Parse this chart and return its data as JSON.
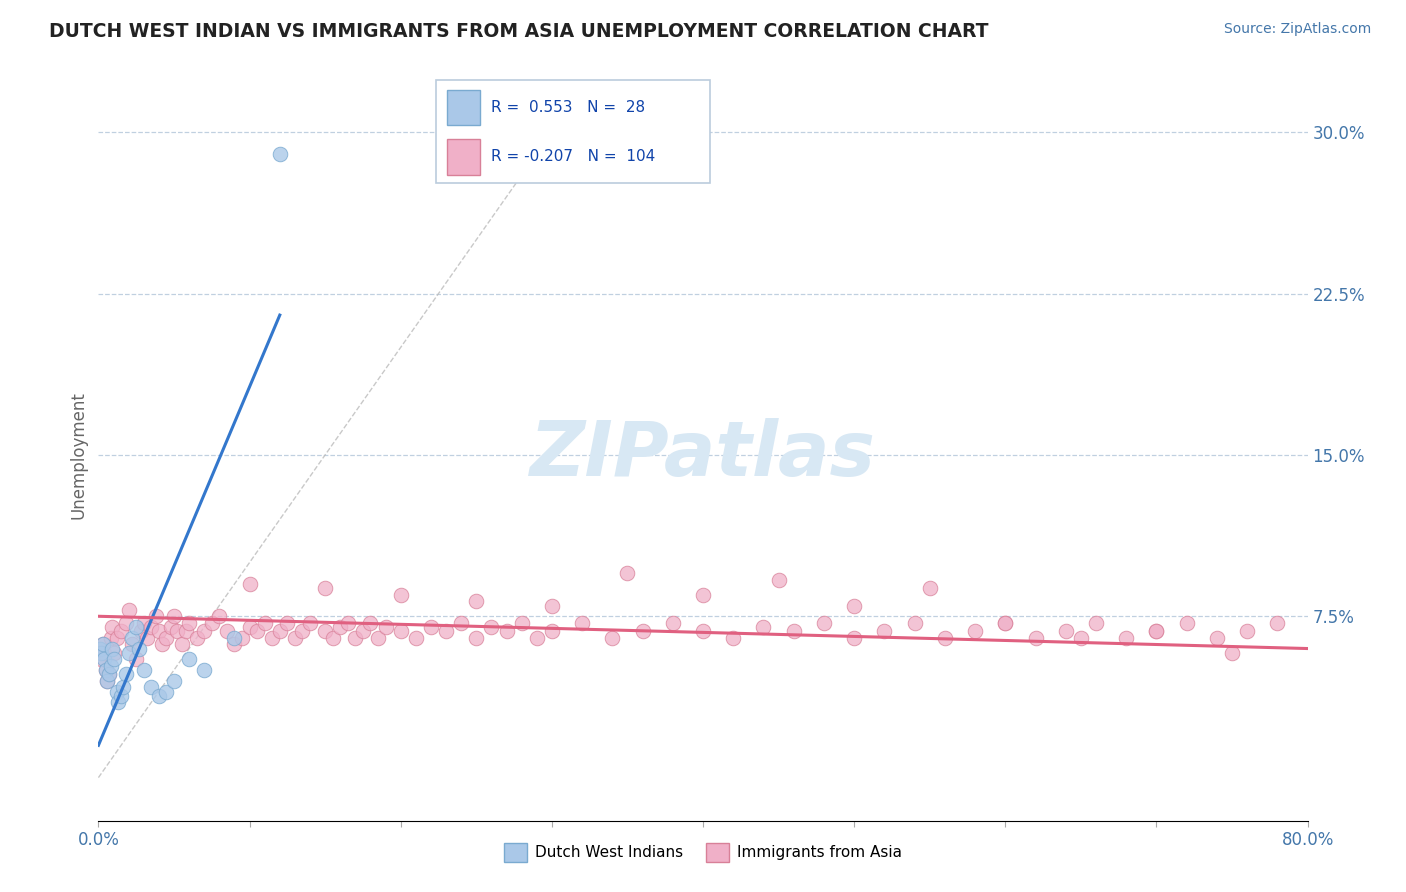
{
  "title": "DUTCH WEST INDIAN VS IMMIGRANTS FROM ASIA UNEMPLOYMENT CORRELATION CHART",
  "source_text": "Source: ZipAtlas.com",
  "ylabel": "Unemployment",
  "xlim": [
    0.0,
    0.8
  ],
  "ylim": [
    -0.02,
    0.32
  ],
  "xticks": [
    0.0,
    0.1,
    0.2,
    0.3,
    0.4,
    0.5,
    0.6,
    0.7,
    0.8
  ],
  "xticklabels": [
    "0.0%",
    "",
    "",
    "",
    "",
    "",
    "",
    "",
    "80.0%"
  ],
  "yticks_right": [
    0.075,
    0.15,
    0.225,
    0.3
  ],
  "yticklabels_right": [
    "7.5%",
    "15.0%",
    "22.5%",
    "30.0%"
  ],
  "blue_R": 0.553,
  "blue_N": 28,
  "pink_R": -0.207,
  "pink_N": 104,
  "blue_color": "#aac8e8",
  "blue_edge": "#7aaad0",
  "blue_line_color": "#3377cc",
  "pink_color": "#f0b0c8",
  "pink_edge": "#d88098",
  "pink_line_color": "#e06080",
  "watermark": "ZIPatlas",
  "watermark_color": "#d8e8f4",
  "background_color": "#ffffff",
  "grid_color": "#c0d0e0",
  "legend_label_blue": "Dutch West Indians",
  "legend_label_pink": "Immigrants from Asia",
  "blue_scatter_x": [
    0.001,
    0.002,
    0.003,
    0.004,
    0.005,
    0.006,
    0.007,
    0.008,
    0.009,
    0.01,
    0.012,
    0.013,
    0.015,
    0.016,
    0.018,
    0.02,
    0.022,
    0.025,
    0.027,
    0.03,
    0.035,
    0.04,
    0.045,
    0.05,
    0.06,
    0.07,
    0.09,
    0.12
  ],
  "blue_scatter_y": [
    0.06,
    0.058,
    0.062,
    0.055,
    0.05,
    0.045,
    0.048,
    0.052,
    0.06,
    0.055,
    0.04,
    0.035,
    0.038,
    0.042,
    0.048,
    0.058,
    0.065,
    0.07,
    0.06,
    0.05,
    0.042,
    0.038,
    0.04,
    0.045,
    0.055,
    0.05,
    0.065,
    0.29
  ],
  "pink_scatter_x": [
    0.001,
    0.002,
    0.003,
    0.004,
    0.005,
    0.006,
    0.007,
    0.008,
    0.009,
    0.01,
    0.012,
    0.015,
    0.018,
    0.02,
    0.022,
    0.025,
    0.028,
    0.03,
    0.032,
    0.035,
    0.038,
    0.04,
    0.042,
    0.045,
    0.048,
    0.05,
    0.052,
    0.055,
    0.058,
    0.06,
    0.065,
    0.07,
    0.075,
    0.08,
    0.085,
    0.09,
    0.095,
    0.1,
    0.105,
    0.11,
    0.115,
    0.12,
    0.125,
    0.13,
    0.135,
    0.14,
    0.15,
    0.155,
    0.16,
    0.165,
    0.17,
    0.175,
    0.18,
    0.185,
    0.19,
    0.2,
    0.21,
    0.22,
    0.23,
    0.24,
    0.25,
    0.26,
    0.27,
    0.28,
    0.29,
    0.3,
    0.32,
    0.34,
    0.36,
    0.38,
    0.4,
    0.42,
    0.44,
    0.46,
    0.48,
    0.5,
    0.52,
    0.54,
    0.56,
    0.58,
    0.6,
    0.62,
    0.64,
    0.66,
    0.68,
    0.7,
    0.72,
    0.74,
    0.76,
    0.78,
    0.1,
    0.15,
    0.2,
    0.25,
    0.3,
    0.4,
    0.5,
    0.6,
    0.7,
    0.35,
    0.45,
    0.55,
    0.65,
    0.75
  ],
  "pink_scatter_y": [
    0.06,
    0.055,
    0.062,
    0.058,
    0.05,
    0.045,
    0.048,
    0.065,
    0.07,
    0.058,
    0.065,
    0.068,
    0.072,
    0.078,
    0.062,
    0.055,
    0.068,
    0.072,
    0.065,
    0.07,
    0.075,
    0.068,
    0.062,
    0.065,
    0.07,
    0.075,
    0.068,
    0.062,
    0.068,
    0.072,
    0.065,
    0.068,
    0.072,
    0.075,
    0.068,
    0.062,
    0.065,
    0.07,
    0.068,
    0.072,
    0.065,
    0.068,
    0.072,
    0.065,
    0.068,
    0.072,
    0.068,
    0.065,
    0.07,
    0.072,
    0.065,
    0.068,
    0.072,
    0.065,
    0.07,
    0.068,
    0.065,
    0.07,
    0.068,
    0.072,
    0.065,
    0.07,
    0.068,
    0.072,
    0.065,
    0.068,
    0.072,
    0.065,
    0.068,
    0.072,
    0.068,
    0.065,
    0.07,
    0.068,
    0.072,
    0.065,
    0.068,
    0.072,
    0.065,
    0.068,
    0.072,
    0.065,
    0.068,
    0.072,
    0.065,
    0.068,
    0.072,
    0.065,
    0.068,
    0.072,
    0.09,
    0.088,
    0.085,
    0.082,
    0.08,
    0.085,
    0.08,
    0.072,
    0.068,
    0.095,
    0.092,
    0.088,
    0.065,
    0.058
  ],
  "blue_trend_x": [
    0.0,
    0.12
  ],
  "blue_trend_y": [
    0.015,
    0.215
  ],
  "pink_trend_x": [
    0.0,
    0.8
  ],
  "pink_trend_y": [
    0.075,
    0.06
  ]
}
